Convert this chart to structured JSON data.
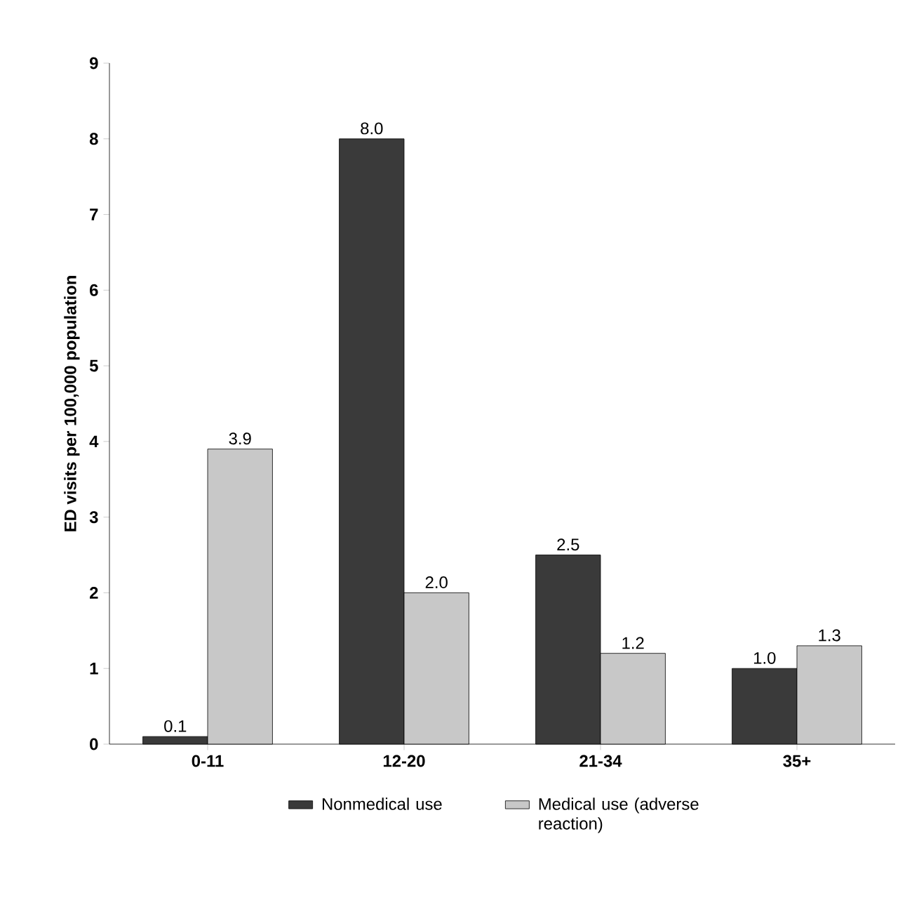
{
  "chart_data": {
    "type": "bar",
    "ylabel": "ED visits per 100,000 population",
    "categories": [
      "0-11",
      "12-20",
      "21-34",
      "35+"
    ],
    "series": [
      {
        "name": "Nonmedical use",
        "color": "#3a3a3a",
        "values": [
          0.1,
          8.0,
          2.5,
          1.0
        ],
        "value_labels": [
          "0.1",
          "8.0",
          "2.5",
          "1.0"
        ]
      },
      {
        "name": "Medical use (adverse reaction)",
        "color": "#c8c8c8",
        "values": [
          3.9,
          2.0,
          1.2,
          1.3
        ],
        "value_labels": [
          "3.9",
          "2.0",
          "1.2",
          "1.3"
        ]
      }
    ],
    "ylim": [
      0,
      9
    ],
    "yticks": [
      0,
      1,
      2,
      3,
      4,
      5,
      6,
      7,
      8,
      9
    ],
    "legend": "bottom"
  }
}
